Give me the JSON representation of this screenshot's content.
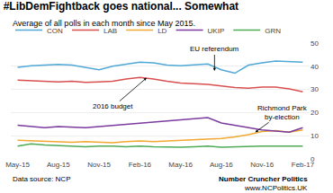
{
  "chart_data": {
    "type": "line",
    "title": "#LibDemFightback goes national... Somewhat",
    "subtitle": "Average of all polls in each month since May 2015.",
    "categories": [
      "May-15",
      null,
      null,
      "Aug-15",
      null,
      null,
      "Nov-15",
      null,
      null,
      "Feb-16",
      null,
      null,
      "May-16",
      null,
      null,
      "Aug-16",
      null,
      null,
      "Nov-16",
      null,
      null,
      "Feb-17"
    ],
    "series": [
      {
        "name": "CON",
        "color": "#4fa8d5",
        "values": [
          39.5,
          40.2,
          40.5,
          40.8,
          40.5,
          39.5,
          38.5,
          40.0,
          41.0,
          41.8,
          41.5,
          40.5,
          40.2,
          40.5,
          41.0,
          38.5,
          37.0,
          40.5,
          41.5,
          42.2,
          42.0,
          41.8
        ]
      },
      {
        "name": "LAB",
        "color": "#d94f4f",
        "values": [
          34.0,
          33.8,
          33.5,
          33.2,
          33.5,
          33.0,
          33.2,
          33.5,
          34.5,
          35.2,
          34.5,
          33.5,
          32.8,
          32.5,
          32.2,
          31.5,
          30.8,
          30.5,
          31.0,
          31.0,
          30.2,
          29.0
        ]
      },
      {
        "name": "LD",
        "color": "#f0a830",
        "values": [
          8.0,
          7.8,
          7.5,
          7.5,
          7.2,
          7.5,
          7.2,
          7.0,
          7.5,
          7.8,
          7.5,
          7.8,
          8.0,
          8.2,
          8.5,
          8.8,
          9.5,
          10.5,
          11.8,
          12.2,
          11.5,
          12.5
        ]
      },
      {
        "name": "UKIP",
        "color": "#7b3a9e",
        "values": [
          14.5,
          14.0,
          13.5,
          14.0,
          13.8,
          13.5,
          14.0,
          14.5,
          14.8,
          15.5,
          15.8,
          16.5,
          17.0,
          17.5,
          17.8,
          15.5,
          14.5,
          13.5,
          12.5,
          12.0,
          11.5,
          13.5
        ]
      },
      {
        "name": "GRN",
        "color": "#4daa57",
        "values": [
          5.5,
          6.5,
          6.0,
          5.8,
          5.5,
          5.2,
          5.5,
          5.5,
          5.2,
          5.5,
          5.2,
          5.0,
          5.0,
          5.2,
          5.5,
          5.0,
          5.2,
          5.5,
          5.5,
          5.5,
          5.5,
          5.5
        ]
      }
    ],
    "ylim": [
      0,
      50
    ],
    "yticks": [
      0,
      10,
      20,
      30,
      40,
      50
    ],
    "grid": true,
    "legend": "top left",
    "annotations": [
      {
        "text": "EU referendum",
        "x": 14.5,
        "y": 38.0
      },
      {
        "text": "2016 budget",
        "x": 9.5,
        "y": 35.0
      },
      {
        "text": "Richmond Park\nby-election",
        "x": 17.5,
        "y": 11.5
      },
      {
        "text": "Data source: NCP"
      },
      {
        "text": "Number Cruncher Politics"
      },
      {
        "text": "www.NCPolitics.UK"
      }
    ]
  }
}
